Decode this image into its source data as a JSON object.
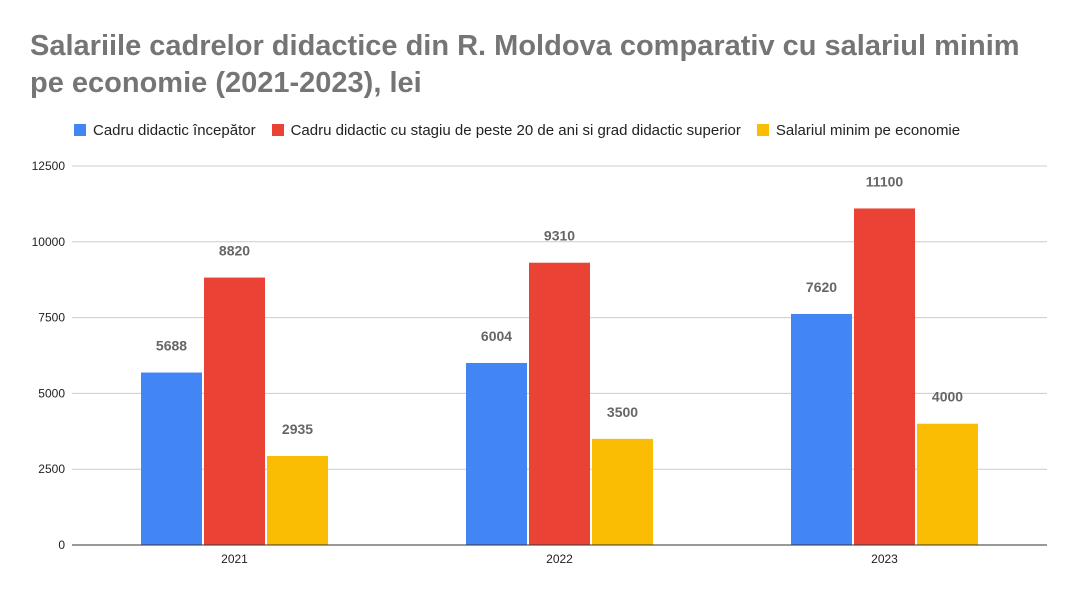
{
  "chart_data": {
    "type": "bar",
    "title": "Salariile cadrelor didactice din R. Moldova comparativ cu salariul minim pe economie (2021-2023), lei",
    "xlabel": "",
    "ylabel": "",
    "categories": [
      "2021",
      "2022",
      "2023"
    ],
    "series": [
      {
        "name": "Cadru didactic începător",
        "color": "#4285f4",
        "values": [
          5688,
          6004,
          7620
        ]
      },
      {
        "name": "Cadru didactic cu stagiu de peste 20 de ani si grad didactic superior",
        "color": "#ea4335",
        "values": [
          8820,
          9310,
          11100
        ]
      },
      {
        "name": "Salariul minim pe economie",
        "color": "#fbbc04",
        "values": [
          2935,
          3500,
          4000
        ]
      }
    ],
    "ylim": [
      0,
      12500
    ],
    "yticks": [
      0,
      2500,
      5000,
      7500,
      10000,
      12500
    ],
    "grid": true,
    "legend": "top-left",
    "data_labels": true
  }
}
